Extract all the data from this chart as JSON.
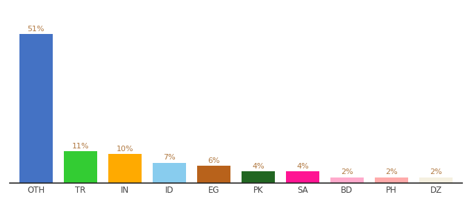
{
  "categories": [
    "OTH",
    "TR",
    "IN",
    "ID",
    "EG",
    "PK",
    "SA",
    "BD",
    "PH",
    "DZ"
  ],
  "values": [
    51,
    11,
    10,
    7,
    6,
    4,
    4,
    2,
    2,
    2
  ],
  "bar_colors": [
    "#4472c4",
    "#33cc33",
    "#ffaa00",
    "#88ccee",
    "#b8621b",
    "#226622",
    "#ff1493",
    "#ffaacc",
    "#ffaaaa",
    "#f5f0e0"
  ],
  "label_color": "#b07840",
  "background_color": "#ffffff",
  "ylim": [
    0,
    57
  ],
  "bar_width": 0.75,
  "figsize": [
    6.8,
    3.0
  ],
  "dpi": 100
}
